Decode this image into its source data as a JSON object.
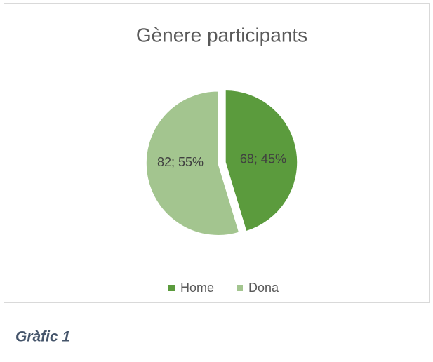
{
  "chart_data": {
    "type": "pie",
    "title": "Gènere participants",
    "categories": [
      "Home",
      "Dona"
    ],
    "values": [
      68,
      82
    ],
    "value_labels": [
      "68; 45%",
      "82; 55%"
    ],
    "colors": [
      "#5b9b3d",
      "#a3c58f"
    ],
    "legend": "bottom"
  },
  "caption": "Gràfic 1"
}
